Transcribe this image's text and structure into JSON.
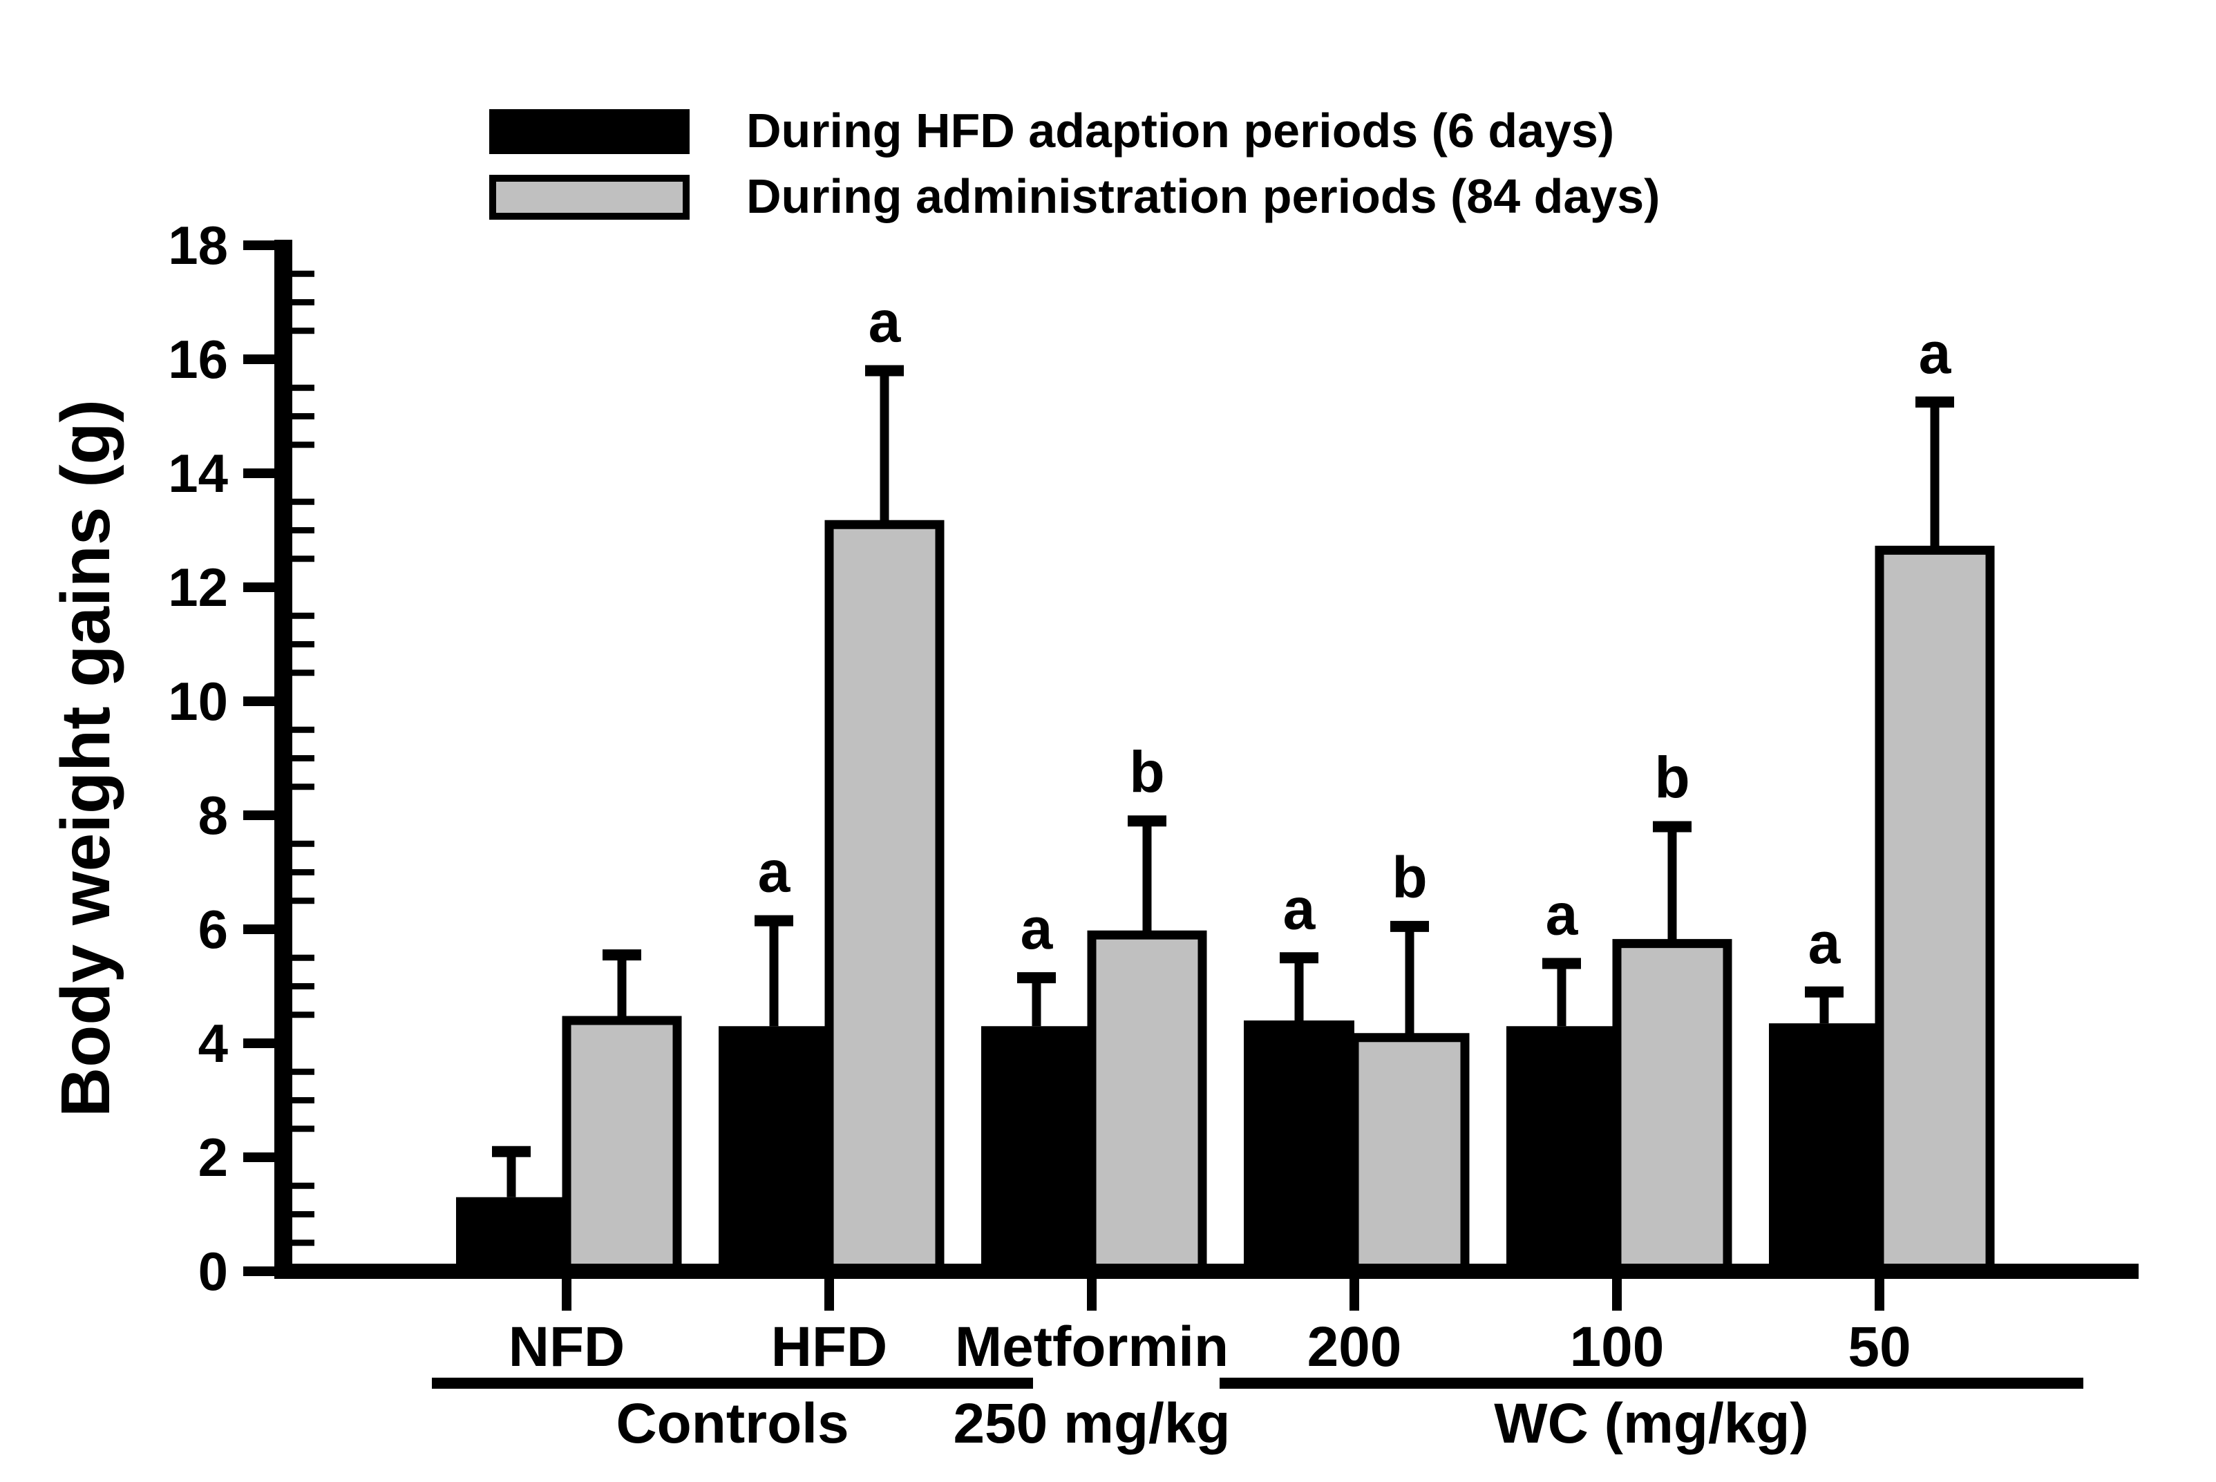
{
  "figure": {
    "background": "#ffffff",
    "bar_outline_color": "#000000",
    "axis_color": "#000000"
  },
  "chart_data": {
    "type": "bar",
    "title": "",
    "xlabel": "",
    "ylabel": "Body weight gains (g)",
    "ylim": [
      0,
      18
    ],
    "ytick_step": 2,
    "yminor_step": 0.5,
    "ytick_labels": [
      "0",
      "2",
      "4",
      "6",
      "8",
      "10",
      "12",
      "14",
      "16",
      "18"
    ],
    "grid": false,
    "legend_position": "top-left-inside",
    "legend": [
      {
        "label": "During HFD adaption periods (6 days)",
        "color": "#000000"
      },
      {
        "label": "During administration periods (84 days)",
        "color": "#c0c0c0"
      }
    ],
    "categories": [
      "NFD",
      "HFD",
      "Metformin",
      "200",
      "100",
      "50"
    ],
    "category_sublabels": [
      "",
      "",
      "250 mg/kg",
      "",
      "",
      ""
    ],
    "series": [
      {
        "name": "During HFD adaption periods (6 days)",
        "color": "#000000",
        "values": [
          1.3,
          4.3,
          4.3,
          4.4,
          4.3,
          4.35
        ],
        "errors": [
          0.8,
          1.85,
          0.85,
          1.1,
          1.1,
          0.55
        ],
        "letters": [
          "",
          "a",
          "a",
          "a",
          "a",
          "a"
        ]
      },
      {
        "name": "During administration periods (84 days)",
        "color": "#c0c0c0",
        "values": [
          4.4,
          13.1,
          5.9,
          4.1,
          5.75,
          12.65
        ],
        "errors": [
          1.15,
          2.7,
          2.0,
          1.95,
          2.05,
          2.6
        ],
        "letters": [
          "",
          "a",
          "b",
          "b",
          "b",
          "a"
        ]
      }
    ],
    "sections": [
      {
        "label": "Controls",
        "start": 0,
        "end": 1
      },
      {
        "label": "WC (mg/kg)",
        "start": 3,
        "end": 5
      }
    ]
  }
}
